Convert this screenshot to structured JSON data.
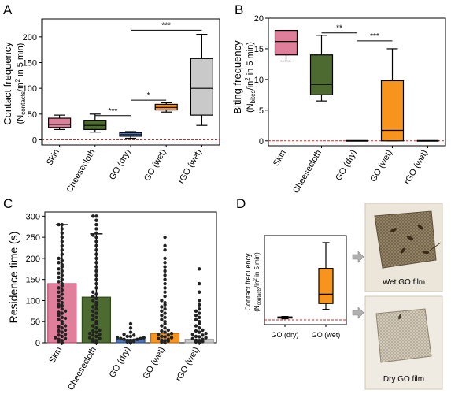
{
  "chart_data": [
    {
      "panel": "A",
      "type": "box",
      "ylabel_line1": "Contact frequency",
      "ylabel_line2": "(N",
      "ylabel_sub": "contacts",
      "ylabel_tail": "/in",
      "ylabel_sup": "2",
      "ylabel_end": " in 5 min)",
      "ylim": [
        -10,
        235
      ],
      "yticks": [
        0,
        50,
        100,
        150,
        200
      ],
      "categories": [
        "Skin",
        "Cheesecloth",
        "GO (dry)",
        "GO (wet)",
        "rGO (wet)"
      ],
      "boxes": [
        {
          "whisker_low": 20,
          "q1": 24,
          "median": 30,
          "q3": 42,
          "whisker_high": 48,
          "color": "#e07f9b"
        },
        {
          "whisker_low": 15,
          "q1": 20,
          "median": 28,
          "q3": 38,
          "whisker_high": 50,
          "color": "#4d6a30"
        },
        {
          "whisker_low": 3,
          "q1": 7,
          "median": 10,
          "q3": 14,
          "whisker_high": 16,
          "color": "#4a76b8"
        },
        {
          "whisker_low": 54,
          "q1": 58,
          "median": 63,
          "q3": 69,
          "whisker_high": 72,
          "color": "#f7941d"
        },
        {
          "whisker_low": 28,
          "q1": 48,
          "median": 100,
          "q3": 158,
          "whisker_high": 205,
          "color": "#c9c9c9"
        }
      ],
      "significance": [
        {
          "from": 1,
          "to": 2,
          "label": "***",
          "y": 47
        },
        {
          "from": 2,
          "to": 3,
          "label": "*",
          "y": 77
        },
        {
          "from": 2,
          "to": 4,
          "label": "***",
          "y": 213
        }
      ],
      "reference_line": 0
    },
    {
      "panel": "B",
      "type": "box",
      "ylabel_line1": "Biting frequency",
      "ylabel_line2": "(N",
      "ylabel_sub": "bites",
      "ylabel_tail": "/in",
      "ylabel_sup": "2",
      "ylabel_end": " in 5 min)",
      "ylim": [
        -0.8,
        20
      ],
      "yticks": [
        0,
        5,
        10,
        15,
        20
      ],
      "categories": [
        "Skin",
        "Cheesecloth",
        "GO (dry)",
        "GO (wet)",
        "rGO (wet)"
      ],
      "boxes": [
        {
          "whisker_low": 13,
          "q1": 14,
          "median": 16.2,
          "q3": 18,
          "whisker_high": 18,
          "color": "#e07f9b"
        },
        {
          "whisker_low": 6.5,
          "q1": 7.5,
          "median": 9.2,
          "q3": 14,
          "whisker_high": 17.2,
          "color": "#4d6a30"
        },
        {
          "whisker_low": 0,
          "q1": 0,
          "median": 0,
          "q3": 0,
          "whisker_high": 0,
          "color": "#4a76b8"
        },
        {
          "whisker_low": 0,
          "q1": 0,
          "median": 1.7,
          "q3": 9.8,
          "whisker_high": 15,
          "color": "#f7941d"
        },
        {
          "whisker_low": 0,
          "q1": 0,
          "median": 0,
          "q3": 0,
          "whisker_high": 0,
          "color": "#c9c9c9"
        }
      ],
      "significance": [
        {
          "from": 1,
          "to": 2,
          "label": "**",
          "y": 17.6
        },
        {
          "from": 2,
          "to": 3,
          "label": "***",
          "y": 16.3
        }
      ],
      "reference_line": 0
    },
    {
      "panel": "C",
      "type": "scatter",
      "ylabel": "Residence time (s)",
      "ylim": [
        0,
        310
      ],
      "yticks": [
        0,
        50,
        100,
        150,
        200,
        250,
        300
      ],
      "categories": [
        "Skin",
        "Cheesecloth",
        "GO (dry)",
        "GO (wet)",
        "rGO (wet)"
      ],
      "bars": [
        {
          "mean": 140,
          "error_high": 280,
          "color": "#e07f9b",
          "edge": "#b94a6e"
        },
        {
          "mean": 108,
          "error_high": 258,
          "color": "#4d6a30",
          "edge": "#2e4a1a"
        },
        {
          "mean": 8,
          "error_high": 8,
          "color": "#4a76b8",
          "edge": "#2b4f87"
        },
        {
          "mean": 22,
          "error_high": 22,
          "color": "#f7941d",
          "edge": "#c56f08"
        },
        {
          "mean": 8,
          "error_high": 8,
          "color": "#c9c9c9",
          "edge": "#999999"
        }
      ],
      "points": [
        [
          0,
          3,
          5,
          8,
          10,
          12,
          15,
          18,
          20,
          25,
          28,
          30,
          35,
          38,
          40,
          45,
          50,
          55,
          58,
          60,
          65,
          70,
          72,
          75,
          80,
          85,
          88,
          90,
          95,
          100,
          105,
          110,
          115,
          120,
          125,
          130,
          135,
          140,
          145,
          150,
          155,
          160,
          165,
          170,
          175,
          180,
          185,
          190,
          195,
          200,
          210,
          220,
          230,
          240,
          250,
          260,
          270,
          280,
          280
        ],
        [
          0,
          3,
          5,
          8,
          10,
          12,
          15,
          18,
          20,
          22,
          25,
          28,
          30,
          35,
          40,
          45,
          50,
          55,
          60,
          65,
          70,
          75,
          80,
          85,
          90,
          95,
          100,
          105,
          110,
          115,
          120,
          130,
          140,
          150,
          160,
          170,
          180,
          190,
          200,
          210,
          220,
          230,
          240,
          250,
          255,
          260,
          270,
          280,
          290,
          300,
          300
        ],
        [
          0,
          2,
          3,
          5,
          5,
          6,
          8,
          8,
          10,
          10,
          12,
          12,
          15,
          15,
          18,
          20,
          25,
          35,
          45
        ],
        [
          0,
          2,
          4,
          5,
          6,
          8,
          10,
          12,
          14,
          15,
          18,
          20,
          22,
          25,
          28,
          30,
          35,
          40,
          45,
          50,
          55,
          60,
          65,
          70,
          75,
          80,
          85,
          90,
          95,
          100,
          110,
          120,
          130,
          140,
          150,
          160,
          170,
          180,
          190,
          200,
          220,
          230,
          250
        ],
        [
          0,
          2,
          3,
          5,
          6,
          8,
          10,
          12,
          14,
          15,
          18,
          20,
          22,
          25,
          28,
          30,
          35,
          40,
          45,
          50,
          55,
          60,
          65,
          70,
          75,
          80,
          90,
          100,
          120,
          140,
          175
        ]
      ]
    },
    {
      "panel": "D",
      "type": "box",
      "ylabel_line1": "Contact frequency",
      "ylabel_line2": "(N",
      "ylabel_sub": "contacts",
      "ylabel_tail": "/in",
      "ylabel_sup": "2",
      "ylabel_end": " in 5 min)",
      "ylim": [
        -2,
        36
      ],
      "categories": [
        "GO (dry)",
        "GO (wet)"
      ],
      "boxes": [
        {
          "whisker_low": 0.5,
          "q1": 0.8,
          "median": 1,
          "q3": 1.3,
          "whisker_high": 1.5,
          "color": "#4a76b8"
        },
        {
          "whisker_low": 4.5,
          "q1": 7,
          "median": 11,
          "q3": 22,
          "whisker_high": 33,
          "color": "#f7941d"
        }
      ],
      "reference_line": 0
    }
  ],
  "panels": {
    "a": "A",
    "b": "B",
    "c": "C",
    "d": "D"
  },
  "photos": {
    "wet_caption": "Wet GO film",
    "dry_caption": "Dry GO film"
  }
}
